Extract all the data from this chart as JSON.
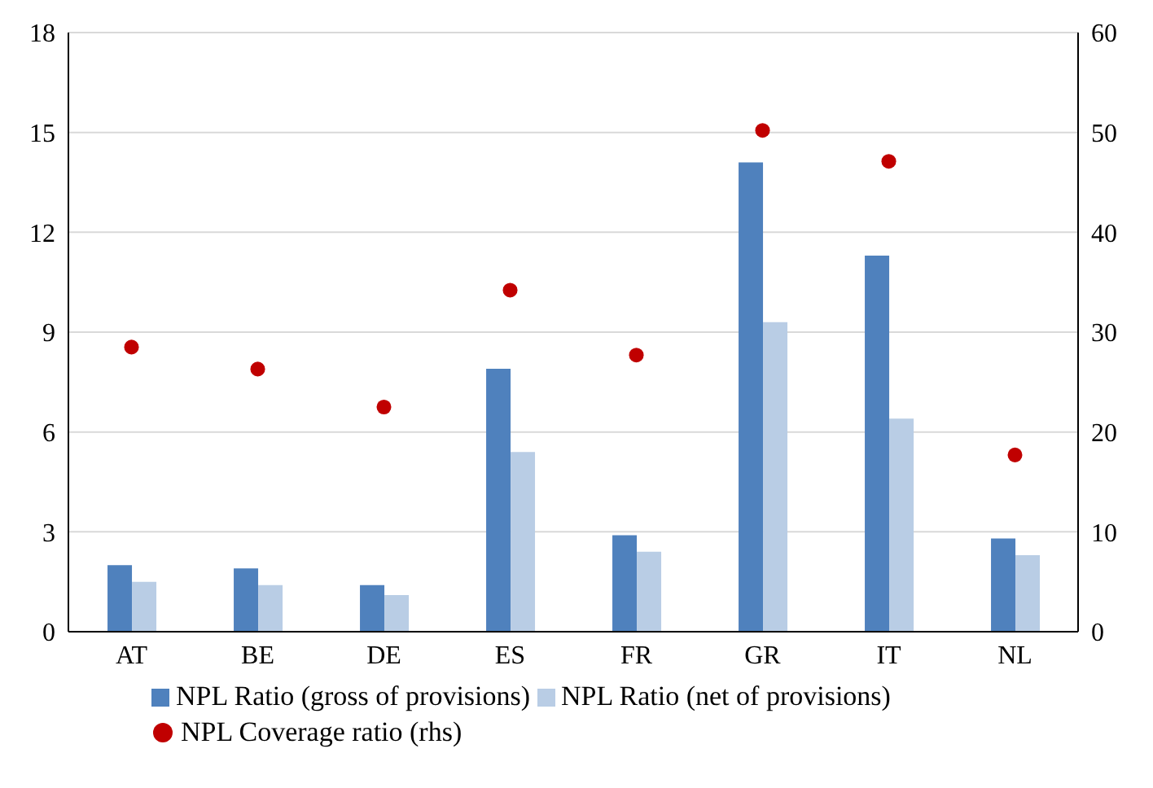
{
  "chart_data": {
    "type": "bar",
    "categories": [
      "AT",
      "BE",
      "DE",
      "ES",
      "FR",
      "GR",
      "IT",
      "NL"
    ],
    "series": [
      {
        "name": "NPL Ratio (gross of provisions)",
        "color": "#4f81bd",
        "values": [
          2.0,
          1.9,
          1.4,
          7.9,
          2.9,
          14.1,
          11.3,
          2.8
        ]
      },
      {
        "name": "NPL Ratio (net of provisions)",
        "color": "#b9cde5",
        "values": [
          1.5,
          1.4,
          1.1,
          5.4,
          2.4,
          9.3,
          6.4,
          2.3
        ]
      },
      {
        "name": "NPL Coverage ratio (rhs)",
        "type": "scatter",
        "axis": "y2",
        "color": "#c00000",
        "marker": "circle",
        "values": [
          28.5,
          26.3,
          22.5,
          34.2,
          27.7,
          50.2,
          47.1,
          17.7
        ]
      }
    ],
    "ylim": [
      0,
      18
    ],
    "yticks": [
      0,
      3,
      6,
      9,
      12,
      15,
      18
    ],
    "y2lim": [
      0,
      60
    ],
    "y2ticks": [
      0,
      10,
      20,
      30,
      40,
      50,
      60
    ],
    "grid": "y",
    "legend": "bottom"
  }
}
